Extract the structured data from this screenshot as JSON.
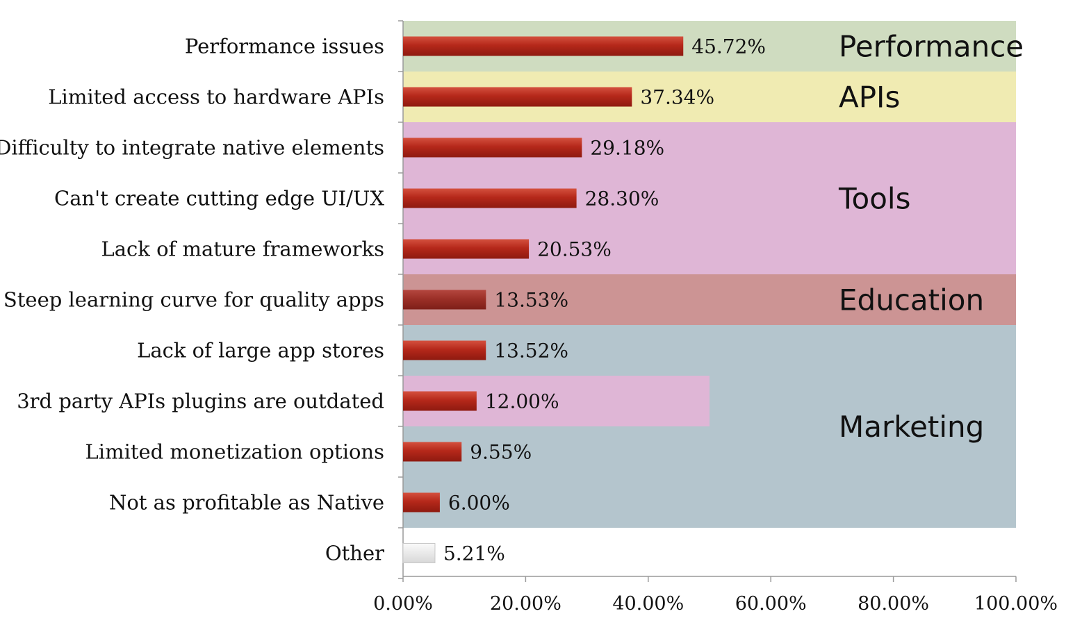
{
  "chart_data": {
    "type": "bar",
    "orientation": "horizontal",
    "title": "",
    "xlabel": "",
    "ylabel": "",
    "xlim": [
      0,
      100
    ],
    "grid": false,
    "categories": [
      "Performance issues",
      "Limited access to hardware APIs",
      "Difficulty to integrate native elements",
      "Can't create cutting edge UI/UX",
      "Lack of mature frameworks",
      "Steep learning curve for quality apps",
      "Lack of large app stores",
      "3rd party APIs plugins are outdated",
      "Limited monetization options",
      "Not as profitable as Native",
      "Other"
    ],
    "values": [
      45.72,
      37.34,
      29.18,
      28.3,
      20.53,
      13.53,
      13.52,
      12.0,
      9.55,
      6.0,
      5.21
    ],
    "value_labels": [
      "45.72%",
      "37.34%",
      "29.18%",
      "28.30%",
      "20.53%",
      "13.53%",
      "13.52%",
      "12.00%",
      "9.55%",
      "6.00%",
      "5.21%"
    ],
    "x_ticks": [
      0,
      20,
      40,
      60,
      80,
      100
    ],
    "x_tick_labels": [
      "0.00%",
      "20.00%",
      "40.00%",
      "60.00%",
      "80.00%",
      "100.00%"
    ],
    "groups": [
      {
        "name": "Performance",
        "rows": [
          0
        ],
        "color": "#cfdcc0"
      },
      {
        "name": "APIs",
        "rows": [
          1
        ],
        "color": "#f0ebb2"
      },
      {
        "name": "Tools",
        "rows": [
          2,
          3,
          4
        ],
        "color": "#dfb6d6"
      },
      {
        "name": "Education",
        "rows": [
          5
        ],
        "color": "#cc9494"
      },
      {
        "name": "Marketing",
        "rows": [
          6,
          7,
          8,
          9
        ],
        "color": "#b4c5cd"
      }
    ],
    "highlight": {
      "row": 7,
      "extent": 50,
      "color": "#dfb6d6"
    },
    "colors": {
      "bar": "#b5281a",
      "bar_dark": "#9c3028",
      "bar_other": "#ececec",
      "value_text_muted": "#7a3030"
    }
  }
}
